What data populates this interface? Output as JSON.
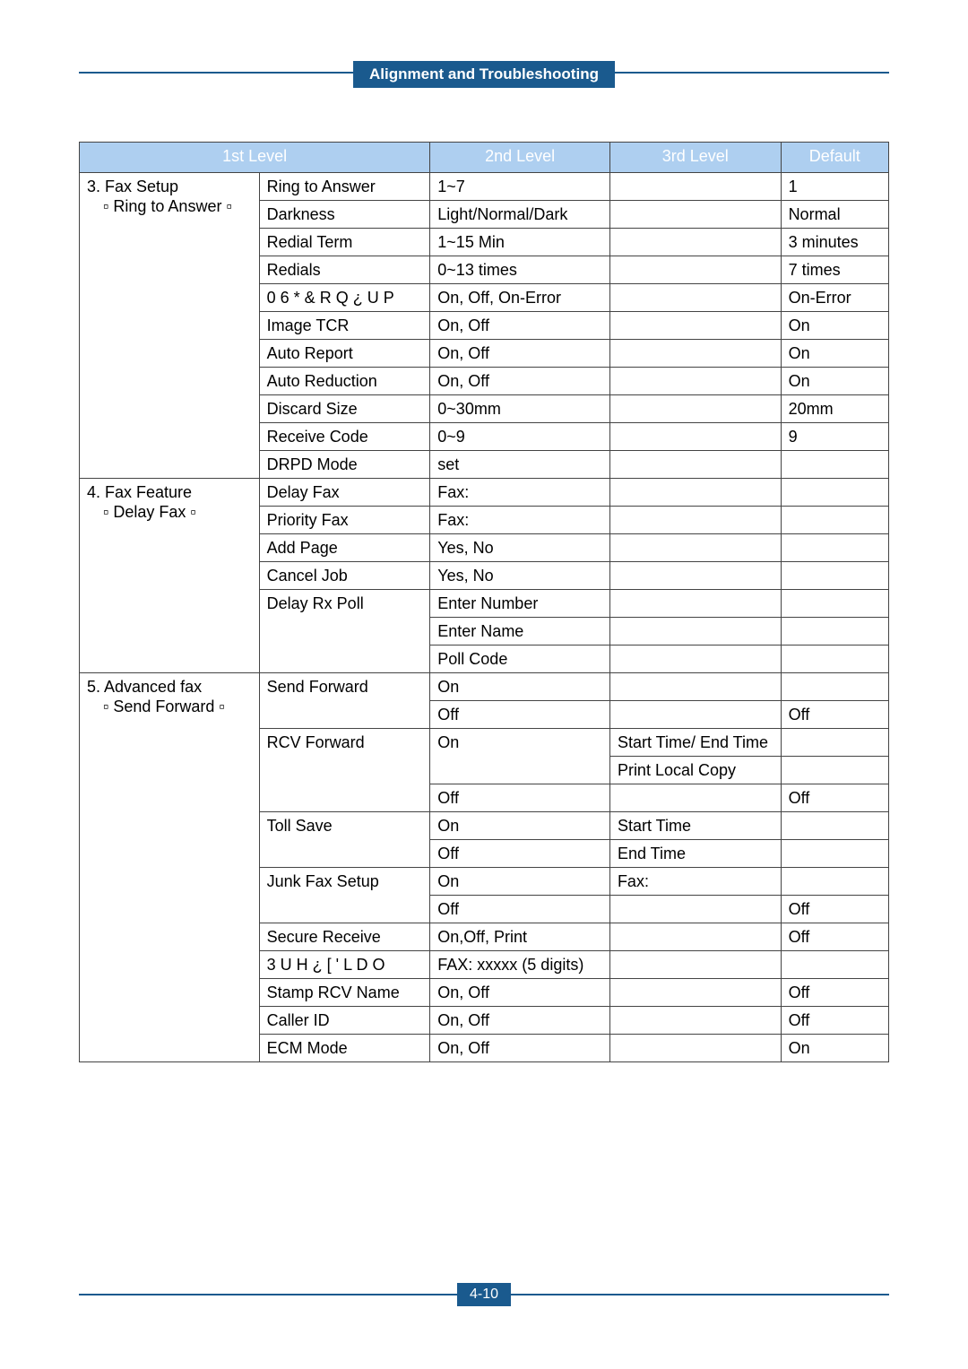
{
  "header_badge": "Alignment and Troubleshooting",
  "footer_badge": "4-10",
  "colors": {
    "accent": "#1a5a8e",
    "header_bg": "#aecff0",
    "header_text": "#ffffff",
    "border": "#444444",
    "page_bg": "#ffffff"
  },
  "table": {
    "headers": [
      "1st Level",
      "2nd Level",
      "3rd Level",
      "Default"
    ],
    "header_colspans": [
      2,
      1,
      1,
      1
    ],
    "col_widths_pct": [
      20,
      19,
      20,
      19,
      12
    ],
    "font_size_pt": 14,
    "rows": [
      {
        "c1": "3. Fax Setup",
        "c1_rowspan": 11,
        "c1_sub": "Ring to Answer",
        "c2": "Ring to Answer",
        "c3": "1~7",
        "c4": "",
        "c5": "1"
      },
      {
        "c2": "Darkness",
        "c3": "Light/Normal/Dark",
        "c4": "",
        "c5": "Normal"
      },
      {
        "c2": "Redial Term",
        "c3": "1~15 Min",
        "c4": "",
        "c5": "3 minutes"
      },
      {
        "c2": "Redials",
        "c3": "0~13 times",
        "c4": "",
        "c5": "7 times"
      },
      {
        "c2": "0 6 *  & R Q ¿ U P",
        "c3": "On, Off, On-Error",
        "c4": "",
        "c5": "On-Error"
      },
      {
        "c2": "Image TCR",
        "c3": "On, Off",
        "c4": "",
        "c5": "On"
      },
      {
        "c2": "Auto Report",
        "c3": "On, Off",
        "c4": "",
        "c5": "On"
      },
      {
        "c2": "Auto Reduction",
        "c3": "On, Off",
        "c4": "",
        "c5": "On"
      },
      {
        "c2": "Discard Size",
        "c3": "0~30mm",
        "c4": "",
        "c5": "20mm"
      },
      {
        "c2": "Receive Code",
        "c3": "0~9",
        "c4": "",
        "c5": "9"
      },
      {
        "c2": "DRPD Mode",
        "c3": "set",
        "c4": "",
        "c5": ""
      },
      {
        "c1": "4. Fax Feature",
        "c1_rowspan": 7,
        "c1_sub": "Delay Fax",
        "c2": "Delay Fax",
        "c3": "Fax:",
        "c4": "",
        "c5": ""
      },
      {
        "c2": "Priority Fax",
        "c3": "Fax:",
        "c4": "",
        "c5": ""
      },
      {
        "c2": "Add Page",
        "c3": "Yes, No",
        "c4": "",
        "c5": ""
      },
      {
        "c2": "Cancel Job",
        "c3": "Yes, No",
        "c4": "",
        "c5": ""
      },
      {
        "c2": "Delay Rx Poll",
        "c2_rowspan": 3,
        "c3": "Enter Number",
        "c4": "",
        "c5": ""
      },
      {
        "c3": "Enter Name",
        "c4": "",
        "c5": ""
      },
      {
        "c3": "Poll Code",
        "c4": "",
        "c5": ""
      },
      {
        "c1": "5. Advanced fax",
        "c1_rowspan": 14,
        "c1_sub": "Send Forward",
        "c2": "Send Forward",
        "c2_rowspan": 2,
        "c3": "On",
        "c4": "",
        "c5": ""
      },
      {
        "c3": "Off",
        "c4": "",
        "c5": "Off"
      },
      {
        "c2": "RCV Forward",
        "c2_rowspan": 3,
        "c3": "On",
        "c3_rowspan": 2,
        "c4": "Start Time/ End Time",
        "c5": ""
      },
      {
        "c4": "Print Local Copy",
        "c5": ""
      },
      {
        "c3": "Off",
        "c4": "",
        "c5": "Off"
      },
      {
        "c2": "Toll Save",
        "c2_rowspan": 2,
        "c3": "On",
        "c4": "Start Time",
        "c5": ""
      },
      {
        "c3": "Off",
        "c4": "End Time",
        "c5": ""
      },
      {
        "c2": "Junk Fax Setup",
        "c2_rowspan": 2,
        "c3": "On",
        "c4": "Fax:",
        "c5": ""
      },
      {
        "c3": "Off",
        "c4": "",
        "c5": "Off"
      },
      {
        "c2": "Secure Receive",
        "c3": "On,Off, Print",
        "c4": "",
        "c5": "Off"
      },
      {
        "c2": "3 U H ¿ [  ' L D O",
        "c3": "FAX: xxxxx (5 digits)",
        "c4": "",
        "c5": ""
      },
      {
        "c2": "Stamp RCV Name",
        "c3": "On, Off",
        "c4": "",
        "c5": "Off"
      },
      {
        "c2": "Caller ID",
        "c3": "On, Off",
        "c4": "",
        "c5": "Off"
      },
      {
        "c2": "ECM Mode",
        "c3": "On, Off",
        "c4": "",
        "c5": "On"
      }
    ]
  }
}
